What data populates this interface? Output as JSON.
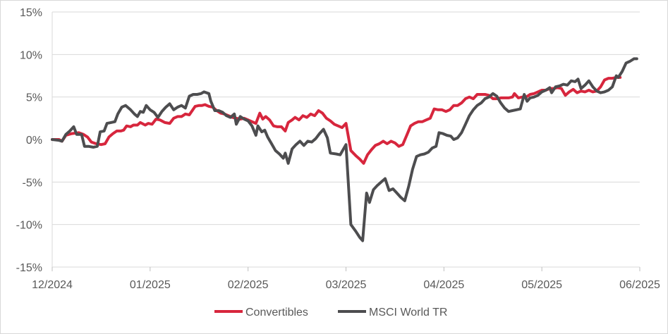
{
  "chart_data": {
    "type": "line",
    "title": "",
    "xlabel": "",
    "ylabel": "",
    "ylim": [
      -15,
      15
    ],
    "yticks": [
      15,
      10,
      5,
      0,
      -5,
      -10,
      -15
    ],
    "ytick_labels": [
      "15%",
      "10%",
      "5%",
      "0%",
      "-5%",
      "-10%",
      "-15%"
    ],
    "xlim": [
      0,
      6
    ],
    "xticks": [
      0,
      1,
      2,
      3,
      4,
      5,
      6
    ],
    "xtick_labels": [
      "12/2024",
      "01/2025",
      "02/2025",
      "03/2025",
      "04/2025",
      "05/2025",
      "06/2025"
    ],
    "grid": "horizontal",
    "legend": "bottom",
    "series": [
      {
        "name": "Convertibles",
        "color": "#d7263d",
        "points": [
          [
            0.0,
            0.0
          ],
          [
            0.07,
            0.0
          ],
          [
            0.1,
            -0.2
          ],
          [
            0.14,
            0.5
          ],
          [
            0.2,
            0.7
          ],
          [
            0.27,
            0.8
          ],
          [
            0.32,
            0.6
          ],
          [
            0.36,
            0.3
          ],
          [
            0.4,
            -0.3
          ],
          [
            0.45,
            -0.5
          ],
          [
            0.5,
            -0.6
          ],
          [
            0.54,
            -0.5
          ],
          [
            0.58,
            0.3
          ],
          [
            0.62,
            0.7
          ],
          [
            0.66,
            1.0
          ],
          [
            0.7,
            1.0
          ],
          [
            0.73,
            1.1
          ],
          [
            0.76,
            1.6
          ],
          [
            0.8,
            1.5
          ],
          [
            0.83,
            1.7
          ],
          [
            0.87,
            1.7
          ],
          [
            0.9,
            2.0
          ],
          [
            0.95,
            1.7
          ],
          [
            0.98,
            1.9
          ],
          [
            1.02,
            1.8
          ],
          [
            1.06,
            2.4
          ],
          [
            1.1,
            2.3
          ],
          [
            1.15,
            2.0
          ],
          [
            1.2,
            1.9
          ],
          [
            1.24,
            2.5
          ],
          [
            1.28,
            2.7
          ],
          [
            1.32,
            2.7
          ],
          [
            1.36,
            3.0
          ],
          [
            1.4,
            2.9
          ],
          [
            1.43,
            3.4
          ],
          [
            1.46,
            3.9
          ],
          [
            1.5,
            4.0
          ],
          [
            1.53,
            4.0
          ],
          [
            1.56,
            4.1
          ],
          [
            1.6,
            3.9
          ],
          [
            1.64,
            3.8
          ],
          [
            1.68,
            3.4
          ],
          [
            1.72,
            3.1
          ],
          [
            1.76,
            3.0
          ],
          [
            1.8,
            2.8
          ],
          [
            1.84,
            2.6
          ],
          [
            1.88,
            2.5
          ],
          [
            1.92,
            2.4
          ],
          [
            1.96,
            2.5
          ],
          [
            2.0,
            2.3
          ],
          [
            2.04,
            2.1
          ],
          [
            2.08,
            1.9
          ],
          [
            2.12,
            3.1
          ],
          [
            2.15,
            2.4
          ],
          [
            2.18,
            2.7
          ],
          [
            2.22,
            2.3
          ],
          [
            2.26,
            1.6
          ],
          [
            2.3,
            1.5
          ],
          [
            2.34,
            1.5
          ],
          [
            2.38,
            1.0
          ],
          [
            2.41,
            2.0
          ],
          [
            2.45,
            2.3
          ],
          [
            2.48,
            2.6
          ],
          [
            2.52,
            2.3
          ],
          [
            2.56,
            2.8
          ],
          [
            2.6,
            2.6
          ],
          [
            2.64,
            3.0
          ],
          [
            2.68,
            2.8
          ],
          [
            2.72,
            3.4
          ],
          [
            2.76,
            3.1
          ],
          [
            2.8,
            2.5
          ],
          [
            2.84,
            2.2
          ],
          [
            2.88,
            1.8
          ],
          [
            2.92,
            1.6
          ],
          [
            2.96,
            1.4
          ],
          [
            3.0,
            1.9
          ],
          [
            3.05,
            -1.3
          ],
          [
            3.1,
            -1.9
          ],
          [
            3.14,
            -2.3
          ],
          [
            3.18,
            -2.8
          ],
          [
            3.22,
            -1.8
          ],
          [
            3.26,
            -1.2
          ],
          [
            3.3,
            -0.7
          ],
          [
            3.34,
            -0.5
          ],
          [
            3.38,
            -0.2
          ],
          [
            3.42,
            -0.5
          ],
          [
            3.46,
            -0.2
          ],
          [
            3.5,
            -0.4
          ],
          [
            3.54,
            -0.8
          ],
          [
            3.58,
            -0.6
          ],
          [
            3.62,
            0.5
          ],
          [
            3.66,
            1.6
          ],
          [
            3.7,
            1.9
          ],
          [
            3.74,
            2.1
          ],
          [
            3.78,
            2.1
          ],
          [
            3.82,
            2.3
          ],
          [
            3.86,
            2.5
          ],
          [
            3.9,
            3.6
          ],
          [
            3.94,
            3.5
          ],
          [
            3.98,
            3.5
          ],
          [
            4.02,
            3.3
          ],
          [
            4.06,
            3.5
          ],
          [
            4.1,
            4.0
          ],
          [
            4.14,
            4.0
          ],
          [
            4.18,
            4.3
          ],
          [
            4.22,
            4.8
          ],
          [
            4.26,
            5.0
          ],
          [
            4.3,
            4.8
          ],
          [
            4.34,
            5.3
          ],
          [
            4.38,
            5.3
          ],
          [
            4.42,
            5.3
          ],
          [
            4.46,
            5.2
          ],
          [
            4.5,
            4.8
          ],
          [
            4.54,
            4.8
          ],
          [
            4.58,
            4.9
          ],
          [
            4.62,
            4.9
          ],
          [
            4.66,
            4.9
          ],
          [
            4.7,
            5.0
          ],
          [
            4.72,
            5.4
          ],
          [
            4.76,
            4.9
          ],
          [
            4.8,
            5.0
          ],
          [
            4.84,
            5.0
          ],
          [
            4.88,
            5.3
          ],
          [
            4.92,
            5.4
          ],
          [
            4.96,
            5.6
          ],
          [
            5.0,
            5.8
          ],
          [
            5.04,
            5.8
          ],
          [
            5.08,
            6.0
          ],
          [
            5.12,
            6.0
          ],
          [
            5.16,
            6.1
          ],
          [
            5.2,
            6.0
          ],
          [
            5.24,
            5.2
          ],
          [
            5.28,
            5.6
          ],
          [
            5.32,
            5.9
          ],
          [
            5.36,
            5.5
          ],
          [
            5.4,
            5.7
          ],
          [
            5.44,
            5.6
          ],
          [
            5.48,
            5.8
          ],
          [
            5.52,
            5.6
          ],
          [
            5.56,
            5.7
          ],
          [
            5.6,
            6.2
          ],
          [
            5.64,
            7.0
          ],
          [
            5.68,
            7.2
          ],
          [
            5.72,
            7.2
          ],
          [
            5.76,
            7.3
          ],
          [
            5.8,
            7.3
          ]
        ]
      },
      {
        "name": "MSCI World TR",
        "color": "#4d4d4f",
        "points": [
          [
            0.0,
            0.0
          ],
          [
            0.07,
            -0.1
          ],
          [
            0.1,
            -0.2
          ],
          [
            0.14,
            0.6
          ],
          [
            0.18,
            1.0
          ],
          [
            0.22,
            1.5
          ],
          [
            0.25,
            0.6
          ],
          [
            0.3,
            0.6
          ],
          [
            0.33,
            -0.8
          ],
          [
            0.37,
            -0.8
          ],
          [
            0.42,
            -0.9
          ],
          [
            0.46,
            -0.8
          ],
          [
            0.49,
            0.9
          ],
          [
            0.53,
            1.0
          ],
          [
            0.56,
            1.9
          ],
          [
            0.6,
            2.0
          ],
          [
            0.64,
            2.1
          ],
          [
            0.67,
            3.0
          ],
          [
            0.71,
            3.8
          ],
          [
            0.75,
            4.0
          ],
          [
            0.8,
            3.5
          ],
          [
            0.84,
            3.0
          ],
          [
            0.87,
            2.7
          ],
          [
            0.9,
            3.3
          ],
          [
            0.93,
            3.2
          ],
          [
            0.96,
            4.0
          ],
          [
            1.0,
            3.5
          ],
          [
            1.04,
            3.2
          ],
          [
            1.08,
            2.6
          ],
          [
            1.12,
            3.3
          ],
          [
            1.16,
            3.8
          ],
          [
            1.2,
            4.2
          ],
          [
            1.24,
            3.5
          ],
          [
            1.28,
            3.8
          ],
          [
            1.32,
            4.0
          ],
          [
            1.36,
            3.7
          ],
          [
            1.4,
            5.1
          ],
          [
            1.44,
            5.3
          ],
          [
            1.48,
            5.3
          ],
          [
            1.52,
            5.4
          ],
          [
            1.55,
            5.6
          ],
          [
            1.6,
            5.4
          ],
          [
            1.62,
            4.5
          ],
          [
            1.66,
            3.4
          ],
          [
            1.7,
            3.4
          ],
          [
            1.74,
            3.2
          ],
          [
            1.78,
            2.8
          ],
          [
            1.82,
            2.6
          ],
          [
            1.86,
            3.0
          ],
          [
            1.88,
            1.8
          ],
          [
            1.92,
            2.7
          ],
          [
            1.96,
            2.4
          ],
          [
            2.0,
            2.2
          ],
          [
            2.04,
            1.6
          ],
          [
            2.08,
            0.5
          ],
          [
            2.1,
            1.6
          ],
          [
            2.14,
            0.9
          ],
          [
            2.17,
            1.1
          ],
          [
            2.2,
            0.3
          ],
          [
            2.24,
            -0.5
          ],
          [
            2.28,
            -1.3
          ],
          [
            2.32,
            -1.7
          ],
          [
            2.36,
            -2.2
          ],
          [
            2.38,
            -1.6
          ],
          [
            2.41,
            -2.8
          ],
          [
            2.45,
            -1.1
          ],
          [
            2.49,
            -0.6
          ],
          [
            2.53,
            -0.2
          ],
          [
            2.57,
            -0.7
          ],
          [
            2.61,
            -0.2
          ],
          [
            2.65,
            -0.3
          ],
          [
            2.69,
            0.1
          ],
          [
            2.73,
            0.7
          ],
          [
            2.77,
            1.2
          ],
          [
            2.81,
            0.2
          ],
          [
            2.84,
            -1.6
          ],
          [
            2.9,
            -1.7
          ],
          [
            2.94,
            -1.8
          ],
          [
            2.98,
            -1.0
          ],
          [
            3.0,
            -0.6
          ],
          [
            3.05,
            -10.0
          ],
          [
            3.1,
            -10.8
          ],
          [
            3.14,
            -11.5
          ],
          [
            3.17,
            -11.9
          ],
          [
            3.21,
            -6.3
          ],
          [
            3.24,
            -7.4
          ],
          [
            3.28,
            -5.9
          ],
          [
            3.32,
            -5.4
          ],
          [
            3.36,
            -5.0
          ],
          [
            3.4,
            -4.6
          ],
          [
            3.44,
            -6.0
          ],
          [
            3.48,
            -5.8
          ],
          [
            3.52,
            -6.3
          ],
          [
            3.56,
            -6.8
          ],
          [
            3.6,
            -7.2
          ],
          [
            3.64,
            -5.5
          ],
          [
            3.68,
            -3.5
          ],
          [
            3.72,
            -2.0
          ],
          [
            3.76,
            -1.8
          ],
          [
            3.8,
            -1.7
          ],
          [
            3.84,
            -1.5
          ],
          [
            3.88,
            -1.0
          ],
          [
            3.92,
            -0.8
          ],
          [
            3.95,
            0.8
          ],
          [
            3.99,
            0.7
          ],
          [
            4.03,
            0.5
          ],
          [
            4.07,
            0.4
          ],
          [
            4.1,
            0.0
          ],
          [
            4.14,
            0.2
          ],
          [
            4.18,
            0.8
          ],
          [
            4.22,
            1.8
          ],
          [
            4.26,
            2.8
          ],
          [
            4.3,
            3.5
          ],
          [
            4.34,
            4.0
          ],
          [
            4.38,
            4.3
          ],
          [
            4.42,
            4.8
          ],
          [
            4.46,
            5.0
          ],
          [
            4.5,
            5.4
          ],
          [
            4.54,
            5.1
          ],
          [
            4.58,
            4.3
          ],
          [
            4.62,
            3.7
          ],
          [
            4.66,
            3.3
          ],
          [
            4.7,
            3.4
          ],
          [
            4.74,
            3.5
          ],
          [
            4.78,
            3.6
          ],
          [
            4.82,
            5.3
          ],
          [
            4.85,
            4.5
          ],
          [
            4.88,
            4.9
          ],
          [
            4.92,
            5.0
          ],
          [
            4.96,
            5.2
          ],
          [
            5.0,
            5.6
          ],
          [
            5.04,
            5.8
          ],
          [
            5.08,
            6.1
          ],
          [
            5.1,
            5.5
          ],
          [
            5.14,
            6.2
          ],
          [
            5.18,
            6.3
          ],
          [
            5.22,
            6.5
          ],
          [
            5.26,
            6.4
          ],
          [
            5.3,
            6.9
          ],
          [
            5.34,
            6.8
          ],
          [
            5.37,
            7.1
          ],
          [
            5.4,
            6.0
          ],
          [
            5.44,
            6.4
          ],
          [
            5.48,
            6.9
          ],
          [
            5.52,
            6.2
          ],
          [
            5.56,
            5.7
          ],
          [
            5.6,
            5.5
          ],
          [
            5.64,
            5.6
          ],
          [
            5.68,
            5.8
          ],
          [
            5.72,
            6.2
          ],
          [
            5.76,
            7.5
          ],
          [
            5.78,
            7.3
          ],
          [
            5.82,
            8.0
          ],
          [
            5.86,
            9.0
          ],
          [
            5.9,
            9.2
          ],
          [
            5.94,
            9.5
          ],
          [
            5.97,
            9.5
          ]
        ]
      }
    ]
  }
}
